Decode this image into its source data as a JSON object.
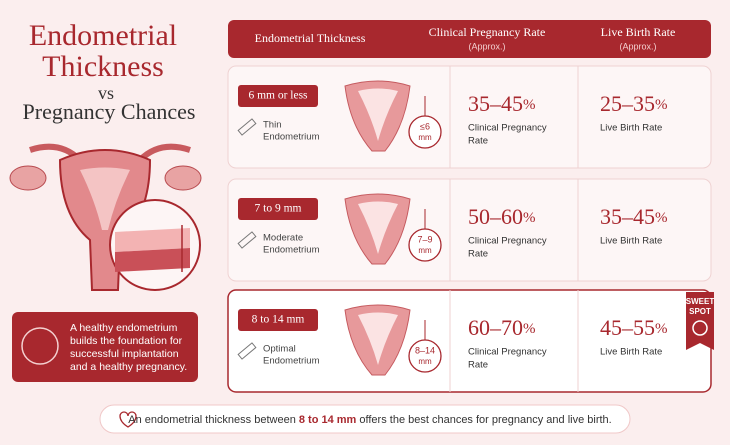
{
  "title": {
    "line1": "Endometrial",
    "line2": "Thickness",
    "vs": "vs",
    "line3": "Pregnancy Chances"
  },
  "callout": [
    "A healthy endometrium",
    "builds the foundation for",
    "successful implantation",
    "and a healthy pregnancy."
  ],
  "table": {
    "header": {
      "thickness": "Endometrial Thickness",
      "cpr": "Clinical Pregnancy Rate",
      "cpr_note": "(Approx.)",
      "lbr": "Live Birth Rate",
      "lbr_note": "(Approx.)"
    },
    "rows": [
      {
        "range": "6 mm or less",
        "type": [
          "Thin",
          "Endometrium"
        ],
        "badge": [
          "≤6",
          "mm"
        ],
        "cpr": "35–45",
        "cpr_unit": "%",
        "cpr_label": [
          "Clinical Pregnancy",
          "Rate"
        ],
        "lbr": "25–35",
        "lbr_unit": "%",
        "lbr_label": "Live Birth Rate"
      },
      {
        "range": "7 to 9 mm",
        "type": [
          "Moderate",
          "Endometrium"
        ],
        "badge": [
          "7–9",
          "mm"
        ],
        "cpr": "50–60",
        "cpr_unit": "%",
        "cpr_label": [
          "Clinical Pregnancy",
          "Rate"
        ],
        "lbr": "35–45",
        "lbr_unit": "%",
        "lbr_label": "Live Birth Rate"
      },
      {
        "range": "8 to 14 mm",
        "type": [
          "Optimal",
          "Endometrium"
        ],
        "badge": [
          "8–14",
          "mm"
        ],
        "cpr": "60–70",
        "cpr_unit": "%",
        "cpr_label": [
          "Clinical Pregnancy",
          "Rate"
        ],
        "lbr": "45–55",
        "lbr_unit": "%",
        "lbr_label": "Live Birth Rate"
      }
    ],
    "highlight": [
      "SWEET",
      "SPOT"
    ]
  },
  "footer": {
    "before": "An endometrial thickness between ",
    "bold": "8 to 14 mm",
    "after": " offers the best chances for pregnancy and live birth."
  }
}
